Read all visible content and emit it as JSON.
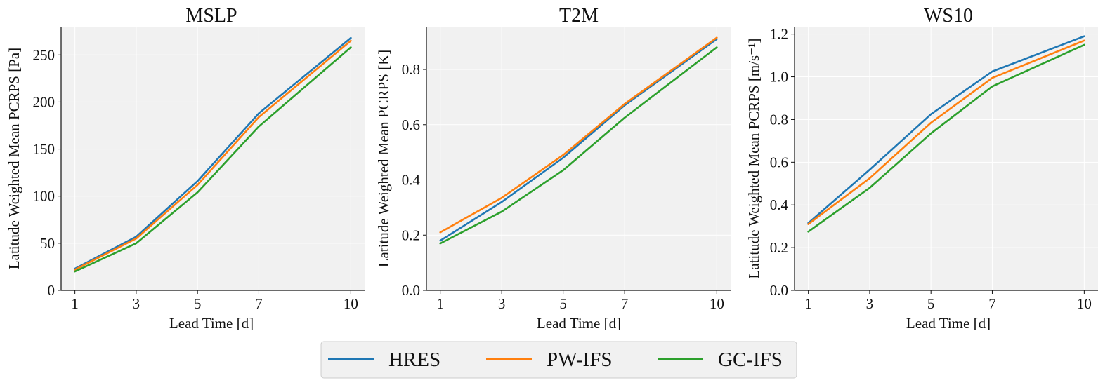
{
  "colors": {
    "HRES": "#1f77b4",
    "PW-IFS": "#ff7f0e",
    "GC-IFS": "#2ca02c",
    "panel_bg": "#f1f1f1",
    "grid": "#ffffff"
  },
  "legend": {
    "entries": [
      "HRES",
      "PW-IFS",
      "GC-IFS"
    ],
    "placement": "bottom-center"
  },
  "chart_data": [
    {
      "type": "line",
      "title": "MSLP",
      "xlabel": "Lead Time [d]",
      "ylabel": "Latitude Weighted Mean PCRPS [Pa]",
      "x": [
        1,
        3,
        5,
        7,
        10
      ],
      "xticks": [
        "1",
        "3",
        "5",
        "7",
        "10"
      ],
      "xlim": [
        0.55,
        10.45
      ],
      "ylim": [
        0,
        280
      ],
      "yticks": [
        0,
        50,
        100,
        150,
        200,
        250
      ],
      "ytick_labels": [
        "0",
        "50",
        "100",
        "150",
        "200",
        "250"
      ],
      "grid": true,
      "series": [
        {
          "name": "HRES",
          "values": [
            23,
            57,
            116,
            188,
            268
          ]
        },
        {
          "name": "PW-IFS",
          "values": [
            22,
            55,
            112,
            184,
            265
          ]
        },
        {
          "name": "GC-IFS",
          "values": [
            20,
            50,
            104,
            174,
            258
          ]
        }
      ]
    },
    {
      "type": "line",
      "title": "T2M",
      "xlabel": "Lead Time [d]",
      "ylabel": "Latitude Weighted Mean PCRPS [K]",
      "x": [
        1,
        3,
        5,
        7,
        10
      ],
      "xticks": [
        "1",
        "3",
        "5",
        "7",
        "10"
      ],
      "xlim": [
        0.55,
        10.45
      ],
      "ylim": [
        0,
        0.955
      ],
      "yticks": [
        0,
        0.2,
        0.4,
        0.6,
        0.8
      ],
      "ytick_labels": [
        "0.0",
        "0.2",
        "0.4",
        "0.6",
        "0.8"
      ],
      "grid": true,
      "series": [
        {
          "name": "HRES",
          "values": [
            0.18,
            0.32,
            0.48,
            0.67,
            0.91
          ]
        },
        {
          "name": "PW-IFS",
          "values": [
            0.21,
            0.335,
            0.49,
            0.675,
            0.915
          ]
        },
        {
          "name": "GC-IFS",
          "values": [
            0.17,
            0.285,
            0.435,
            0.625,
            0.88
          ]
        }
      ]
    },
    {
      "type": "line",
      "title": "WS10",
      "xlabel": "Lead Time [d]",
      "ylabel": "Latitude Weighted Mean PCRPS [m/s⁻¹]",
      "x": [
        1,
        3,
        5,
        7,
        10
      ],
      "xticks": [
        "1",
        "3",
        "5",
        "7",
        "10"
      ],
      "xlim": [
        0.55,
        10.45
      ],
      "ylim": [
        0,
        1.235
      ],
      "yticks": [
        0,
        0.2,
        0.4,
        0.6,
        0.8,
        1.0,
        1.2
      ],
      "ytick_labels": [
        "0.0",
        "0.2",
        "0.4",
        "0.6",
        "0.8",
        "1.0",
        "1.2"
      ],
      "grid": true,
      "series": [
        {
          "name": "HRES",
          "values": [
            0.315,
            0.565,
            0.825,
            1.025,
            1.19
          ]
        },
        {
          "name": "PW-IFS",
          "values": [
            0.31,
            0.525,
            0.785,
            0.995,
            1.17
          ]
        },
        {
          "name": "GC-IFS",
          "values": [
            0.275,
            0.48,
            0.735,
            0.955,
            1.15
          ]
        }
      ]
    }
  ]
}
